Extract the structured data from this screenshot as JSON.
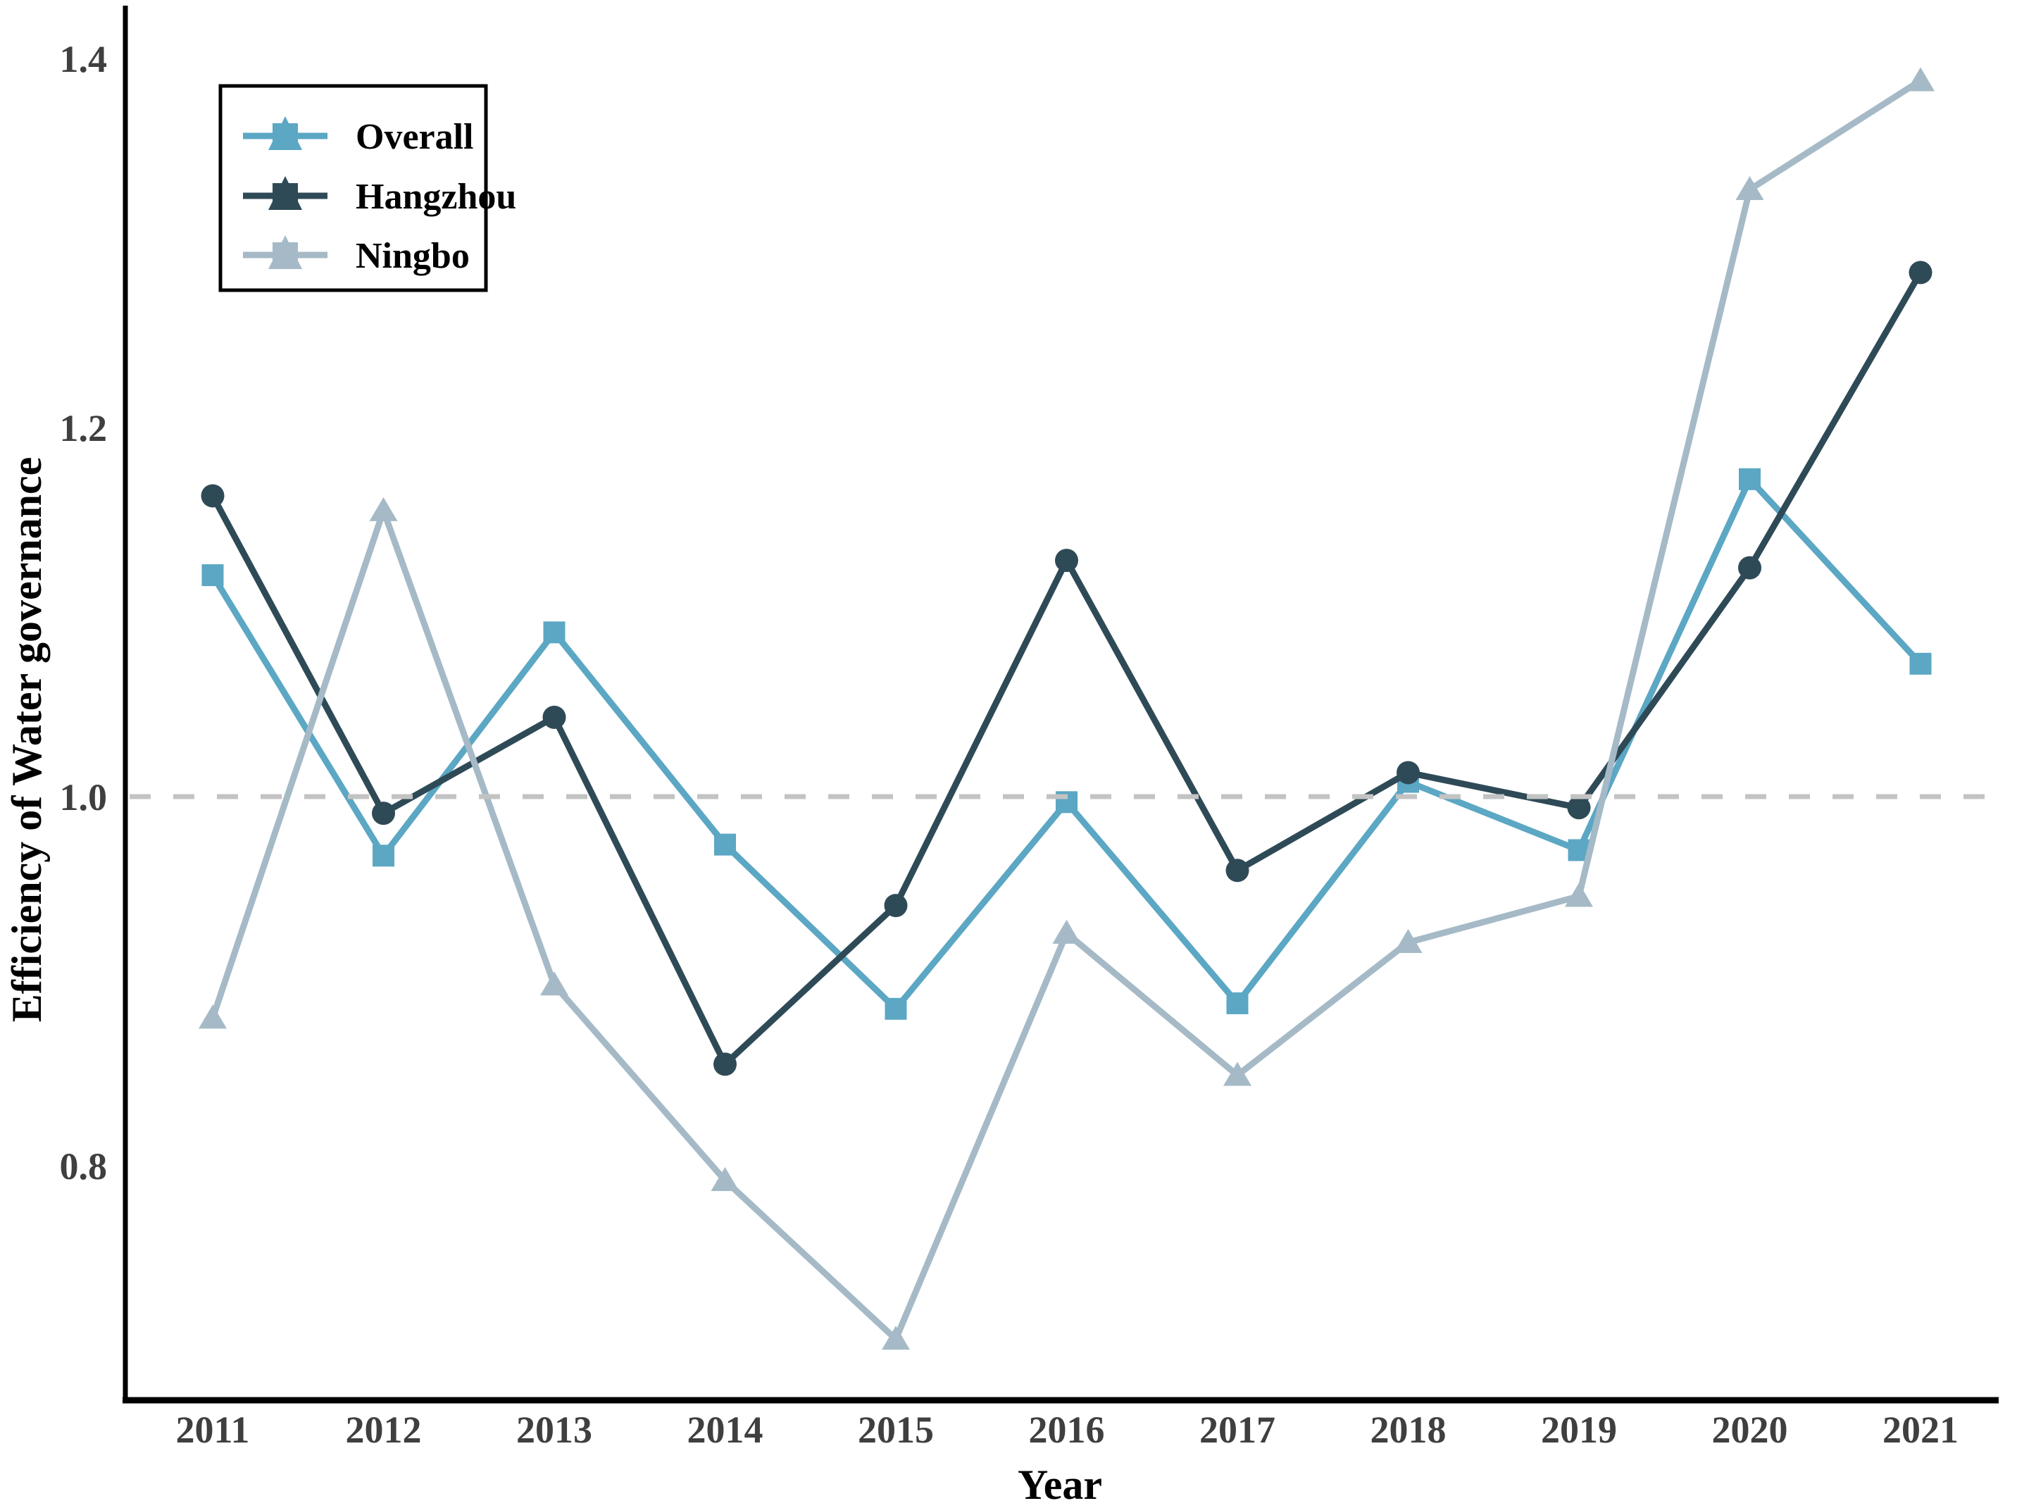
{
  "chart_data": {
    "type": "line",
    "title": "",
    "xlabel": "Year",
    "ylabel": "Efficiency of Water governance",
    "x": [
      2011,
      2012,
      2013,
      2014,
      2015,
      2016,
      2017,
      2018,
      2019,
      2020,
      2021
    ],
    "series": [
      {
        "name": "Overall",
        "marker": "square",
        "color": "#5BA7C4",
        "values": [
          1.12,
          0.968,
          1.089,
          0.974,
          0.885,
          0.997,
          0.888,
          1.008,
          0.971,
          1.172,
          1.072
        ]
      },
      {
        "name": "Hangzhou",
        "marker": "circle",
        "color": "#2F4A57",
        "values": [
          1.163,
          0.991,
          1.043,
          0.855,
          0.941,
          1.128,
          0.96,
          1.013,
          0.994,
          1.124,
          1.284
        ]
      },
      {
        "name": "Ningbo",
        "marker": "triangle",
        "color": "#A5BAC6",
        "values": [
          0.88,
          1.155,
          0.898,
          0.792,
          0.706,
          0.926,
          0.849,
          0.921,
          0.946,
          1.329,
          1.388
        ]
      }
    ],
    "yticks": [
      0.8,
      1.0,
      1.2,
      1.4
    ],
    "ylim": [
      0.673,
      1.428
    ],
    "reference_line": {
      "y": 1.0,
      "style": "dashed",
      "color": "#C3C3C3"
    },
    "grid": false,
    "legend_position": "upper-left",
    "legend": [
      "Overall",
      "Hangzhou",
      "Ningbo"
    ],
    "colors": {
      "axis": "#000000",
      "tick_label": "#3F3F3F",
      "axis_title": "#000000",
      "background": "#FFFFFF"
    }
  }
}
